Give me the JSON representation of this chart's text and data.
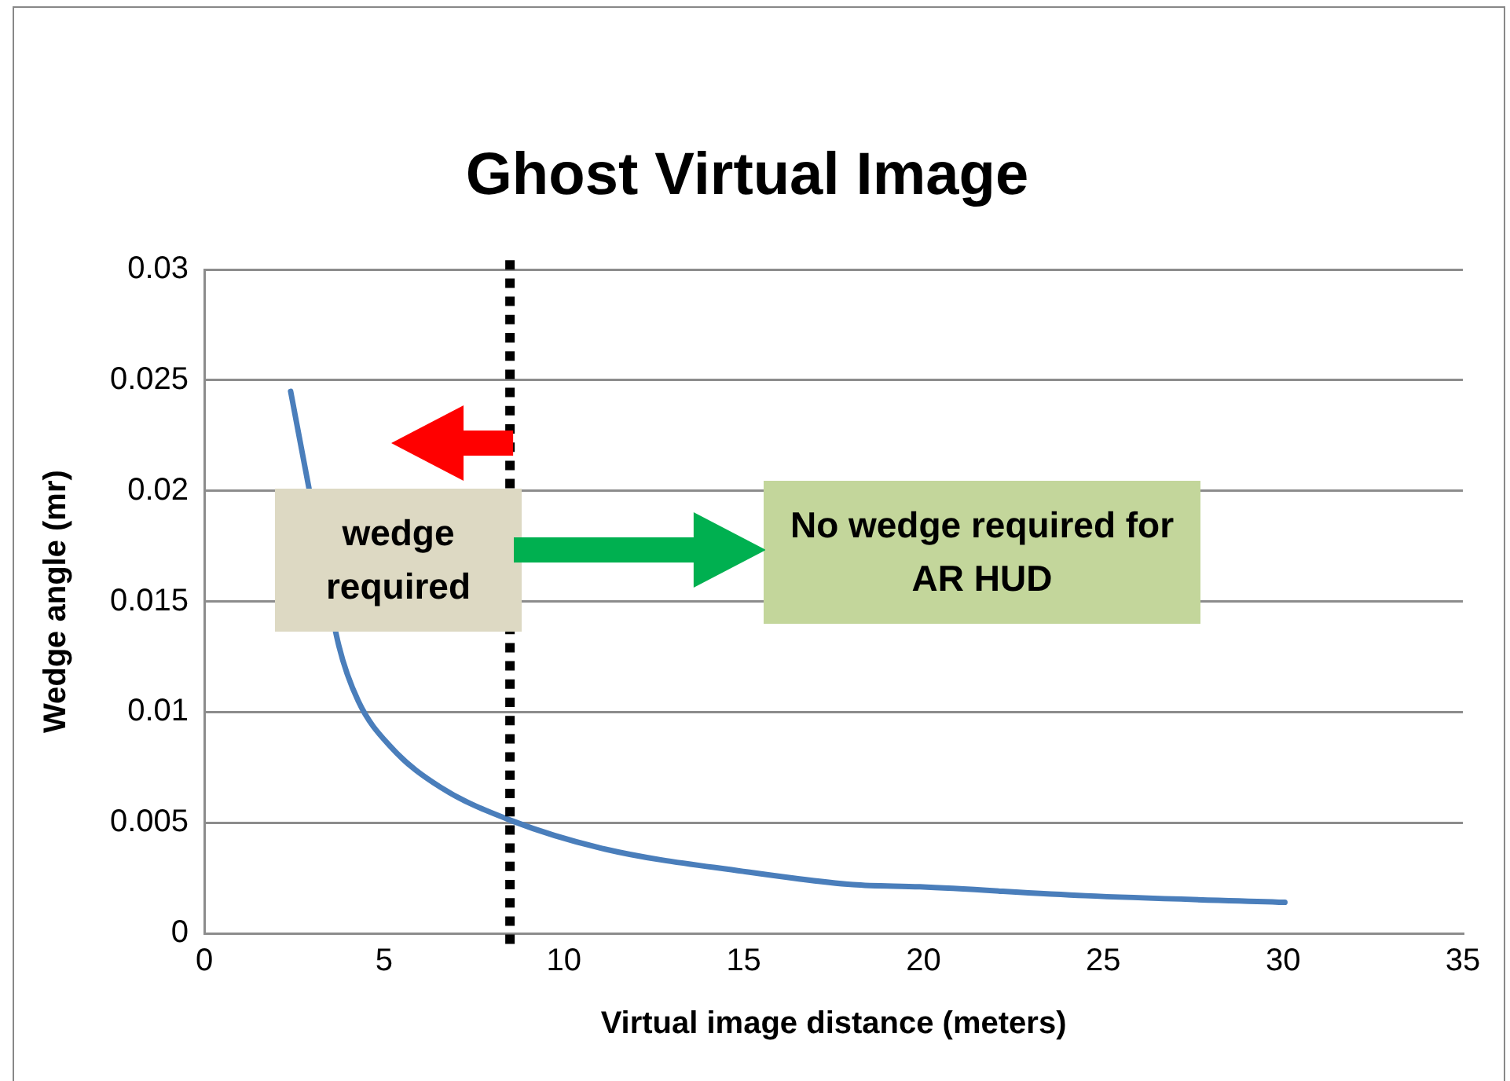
{
  "chart_data": {
    "type": "line",
    "title": "Ghost Virtual Image",
    "xlabel": "Virtual image distance (meters)",
    "ylabel": "Wedge angle (mr)",
    "series": [
      {
        "color": "#4a7ebb",
        "x": [
          2.4,
          2.9,
          3.74,
          4.28,
          5.2,
          6.57,
          8.53,
          11.16,
          14.98,
          18.04,
          19.9,
          24.5,
          30.05
        ],
        "values": [
          0.0245,
          0.0202,
          0.013,
          0.0105,
          0.0084,
          0.0066,
          0.0051,
          0.0038,
          0.0028,
          0.0022,
          0.0021,
          0.0017,
          0.0014
        ]
      }
    ],
    "xlim": [
      0,
      35
    ],
    "xticks": [
      0,
      5,
      10,
      15,
      20,
      25,
      30,
      35
    ],
    "ylim": [
      0,
      0.03
    ],
    "yticks": [
      0,
      0.005,
      0.01,
      0.015,
      0.02,
      0.025,
      0.03
    ],
    "ref_lines": [
      {
        "axis": "x",
        "value": 8.5,
        "color": "#000000",
        "line_style": "dotted"
      }
    ],
    "annotations": [
      "wedge required",
      "No wedge required for AR HUD"
    ],
    "grid": "y",
    "legend": false,
    "marker": "none",
    "line_style": "solid"
  }
}
